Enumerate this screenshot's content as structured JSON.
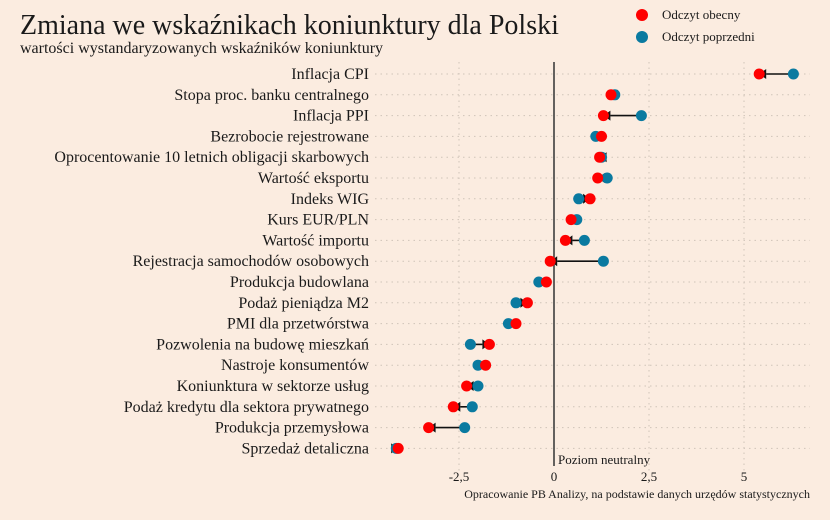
{
  "chart_data": {
    "type": "dumbbell",
    "title": "Zmiana we wskaźnikach koniunktury dla Polski",
    "subtitle": "wartości wystandaryzowanych wskaźników koniunktury",
    "xlabel": "",
    "ylabel": "",
    "xlim": [
      -4.5,
      6.8
    ],
    "xticks": [
      -2.5,
      0,
      2.5,
      5
    ],
    "xtick_labels": [
      "-2,5",
      "0",
      "2,5",
      "5"
    ],
    "neutral_label": "Poziom neutralny",
    "source": "Opracowanie PB Analizy, na podstawie danych urzędów statystycznych",
    "legend_position": "top-right",
    "categories": [
      "Inflacja CPI",
      "Stopa proc. banku centralnego",
      "Inflacja PPI",
      "Bezrobocie rejestrowane",
      "Oprocentowanie 10 letnich obligacji skarbowych",
      "Wartość eksportu",
      "Indeks WIG",
      "Kurs EUR/PLN",
      "Wartość importu",
      "Rejestracja samochodów osobowych",
      "Produkcja budowlana",
      "Podaż pieniądza M2",
      "PMI dla przetwórstwa",
      "Pozwolenia na budowę mieszkań",
      "Nastroje konsumentów",
      "Koniunktura w sektorze usług",
      "Podaż kredytu dla sektora prywatnego",
      "Produkcja przemysłowa",
      "Sprzedaż detaliczna"
    ],
    "series": [
      {
        "name": "Odczyt obecny",
        "color": "#ff0000",
        "values": [
          5.4,
          1.5,
          1.3,
          1.25,
          1.2,
          1.15,
          0.95,
          0.45,
          0.3,
          -0.1,
          -0.2,
          -0.7,
          -1.0,
          -1.7,
          -1.8,
          -2.3,
          -2.65,
          -3.3,
          -4.1
        ]
      },
      {
        "name": "Odczyt poprzedni",
        "color": "#0a7aa0",
        "values": [
          6.3,
          1.6,
          2.3,
          1.1,
          1.25,
          1.4,
          0.65,
          0.6,
          0.8,
          1.3,
          -0.4,
          -1.0,
          -1.2,
          -2.2,
          -2.0,
          -2.0,
          -2.15,
          -2.35,
          -4.15
        ]
      }
    ]
  }
}
